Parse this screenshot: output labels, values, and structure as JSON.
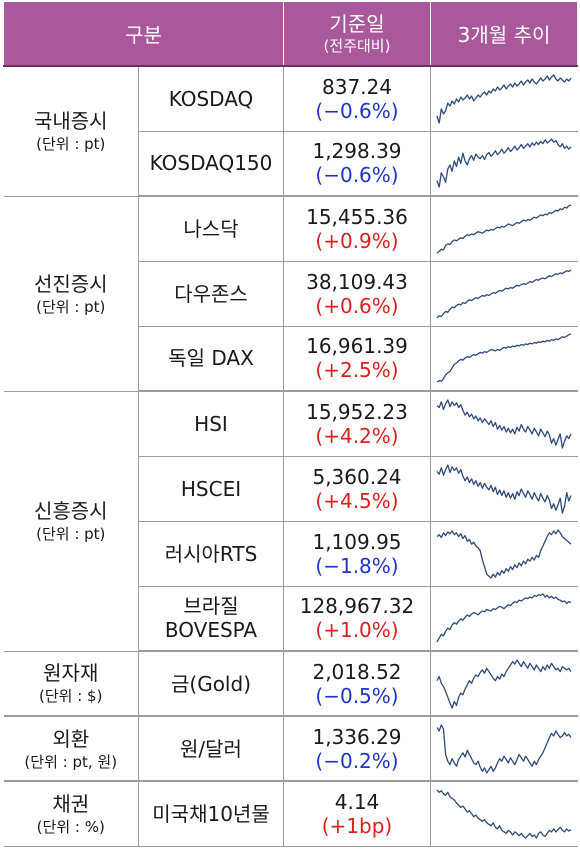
{
  "header": {
    "col_category": "구분",
    "col_value_line1": "기준일",
    "col_value_line2": "(전주대비)",
    "col_trend": "3개월 추이"
  },
  "groups": [
    {
      "name": "국내증시",
      "unit": "(단위 : pt)",
      "rows": [
        {
          "item": "KOSDAQ",
          "value": "837.24",
          "change": "(−0.6%)",
          "direction": "down",
          "trend": [
            45,
            38,
            52,
            47,
            50,
            58,
            55,
            60,
            57,
            62,
            59,
            64,
            61,
            63,
            66,
            62,
            65,
            60,
            63,
            66,
            64,
            67,
            69,
            66,
            70,
            68,
            72,
            70,
            74,
            71,
            73,
            76,
            72,
            75,
            77,
            74,
            78,
            75,
            77,
            80,
            76,
            79,
            81,
            78,
            82,
            79,
            77,
            80,
            83,
            80,
            82,
            85,
            81,
            84,
            86,
            82,
            80,
            83,
            81,
            79,
            82,
            80,
            83
          ]
        },
        {
          "item": "KOSDAQ150",
          "value": "1,298.39",
          "change": "(−0.6%)",
          "direction": "down",
          "trend": [
            30,
            22,
            40,
            35,
            28,
            45,
            50,
            42,
            55,
            48,
            60,
            52,
            65,
            55,
            50,
            58,
            62,
            56,
            64,
            60,
            58,
            62,
            57,
            63,
            66,
            61,
            64,
            68,
            63,
            66,
            70,
            65,
            68,
            72,
            67,
            70,
            74,
            69,
            72,
            76,
            71,
            74,
            77,
            73,
            78,
            75,
            79,
            76,
            80,
            77,
            82,
            78,
            80,
            83,
            79,
            81,
            76,
            73,
            77,
            71,
            74,
            70,
            73
          ]
        }
      ]
    },
    {
      "name": "선진증시",
      "unit": "(단위 : pt)",
      "rows": [
        {
          "item": "나스닥",
          "value": "15,455.36",
          "change": "(+0.9%)",
          "direction": "up",
          "trend": [
            30,
            32,
            35,
            34,
            40,
            42,
            41,
            45,
            47,
            46,
            48,
            50,
            49,
            52,
            54,
            53,
            55,
            54,
            56,
            58,
            57,
            56,
            58,
            60,
            59,
            61,
            60,
            62,
            64,
            63,
            65,
            64,
            66,
            68,
            67,
            66,
            68,
            70,
            69,
            71,
            73,
            72,
            74,
            73,
            75,
            77,
            76,
            78,
            80,
            79,
            81,
            80,
            83,
            82,
            84,
            86,
            85,
            88,
            87,
            90,
            89,
            92,
            93
          ]
        },
        {
          "item": "다우존스",
          "value": "38,109.43",
          "change": "(+0.6%)",
          "direction": "up",
          "trend": [
            25,
            28,
            27,
            31,
            34,
            33,
            37,
            40,
            39,
            42,
            44,
            43,
            46,
            45,
            48,
            50,
            49,
            51,
            53,
            52,
            54,
            56,
            55,
            57,
            56,
            58,
            60,
            59,
            61,
            63,
            62,
            64,
            66,
            65,
            67,
            66,
            68,
            70,
            69,
            71,
            72,
            71,
            73,
            75,
            74,
            76,
            78,
            77,
            79,
            80,
            79,
            81,
            83,
            82,
            84,
            86,
            85,
            87,
            86,
            88,
            90,
            89,
            91
          ]
        },
        {
          "item": "독일 DAX",
          "value": "16,961.39",
          "change": "(+2.5%)",
          "direction": "up",
          "trend": [
            20,
            22,
            21,
            25,
            30,
            33,
            35,
            40,
            45,
            47,
            50,
            52,
            51,
            54,
            56,
            55,
            57,
            59,
            58,
            60,
            62,
            61,
            63,
            62,
            64,
            66,
            65,
            64,
            66,
            65,
            67,
            69,
            68,
            70,
            69,
            71,
            70,
            72,
            71,
            73,
            72,
            74,
            73,
            75,
            74,
            76,
            75,
            77,
            76,
            78,
            77,
            79,
            78,
            80,
            79,
            81,
            80,
            82,
            84,
            83,
            85,
            87,
            88
          ]
        }
      ]
    },
    {
      "name": "신흥증시",
      "unit": "(단위 : pt)",
      "rows": [
        {
          "item": "HSI",
          "value": "15,952.23",
          "change": "(+4.2%)",
          "direction": "up",
          "trend": [
            80,
            78,
            84,
            76,
            82,
            86,
            79,
            84,
            80,
            83,
            78,
            81,
            75,
            70,
            73,
            68,
            71,
            66,
            69,
            64,
            67,
            62,
            66,
            63,
            60,
            64,
            58,
            62,
            55,
            59,
            54,
            58,
            52,
            56,
            51,
            55,
            50,
            57,
            53,
            60,
            55,
            52,
            58,
            54,
            50,
            56,
            52,
            48,
            55,
            51,
            47,
            53,
            49,
            40,
            45,
            38,
            44,
            50,
            35,
            42,
            48,
            45,
            50
          ]
        },
        {
          "item": "HSCEI",
          "value": "5,360.24",
          "change": "(+4.5%)",
          "direction": "up",
          "trend": [
            78,
            75,
            82,
            74,
            80,
            85,
            77,
            83,
            79,
            82,
            76,
            80,
            73,
            68,
            72,
            66,
            70,
            64,
            68,
            62,
            66,
            60,
            65,
            61,
            58,
            63,
            56,
            61,
            53,
            58,
            52,
            57,
            50,
            55,
            49,
            54,
            48,
            56,
            52,
            59,
            54,
            50,
            57,
            53,
            48,
            55,
            50,
            46,
            54,
            49,
            45,
            52,
            47,
            38,
            43,
            36,
            42,
            49,
            33,
            40,
            55,
            46,
            52
          ]
        },
        {
          "item": "러시아RTS",
          "value": "1,109.95",
          "change": "(−1.8%)",
          "direction": "down",
          "trend": [
            70,
            72,
            69,
            74,
            71,
            75,
            73,
            76,
            72,
            74,
            70,
            73,
            68,
            71,
            65,
            67,
            62,
            64,
            60,
            58,
            55,
            45,
            38,
            30,
            28,
            26,
            30,
            27,
            32,
            29,
            34,
            31,
            36,
            33,
            38,
            35,
            40,
            37,
            42,
            39,
            44,
            41,
            46,
            44,
            48,
            45,
            50,
            48,
            55,
            60,
            65,
            70,
            74,
            72,
            76,
            73,
            77,
            74,
            70,
            68,
            66,
            64,
            62
          ]
        },
        {
          "item": "브라질 BOVESPA",
          "item_line1": "브라질",
          "item_line2": "BOVESPA",
          "value": "128,967.32",
          "change": "(+1.0%)",
          "direction": "up",
          "trend": [
            20,
            25,
            30,
            28,
            34,
            38,
            36,
            42,
            45,
            43,
            47,
            50,
            48,
            52,
            55,
            53,
            56,
            58,
            57,
            55,
            58,
            60,
            59,
            62,
            61,
            60,
            63,
            62,
            64,
            66,
            65,
            63,
            66,
            68,
            67,
            70,
            72,
            71,
            74,
            73,
            75,
            77,
            76,
            78,
            77,
            80,
            79,
            81,
            80,
            82,
            78,
            80,
            77,
            79,
            76,
            78,
            75,
            74,
            72,
            73,
            70,
            72,
            71
          ]
        }
      ]
    },
    {
      "name": "원자재",
      "unit": "(단위 : $)",
      "rows": [
        {
          "item": "금(Gold)",
          "value": "2,018.52",
          "change": "(−0.5%)",
          "direction": "down",
          "trend": [
            55,
            60,
            52,
            48,
            42,
            35,
            28,
            22,
            30,
            25,
            35,
            40,
            38,
            45,
            50,
            55,
            52,
            58,
            62,
            60,
            65,
            68,
            64,
            70,
            66,
            62,
            58,
            55,
            60,
            57,
            63,
            60,
            66,
            70,
            74,
            78,
            75,
            80,
            76,
            72,
            78,
            74,
            70,
            76,
            72,
            68,
            74,
            70,
            66,
            72,
            68,
            74,
            70,
            76,
            72,
            68,
            70,
            66,
            72,
            70,
            68,
            70,
            66
          ]
        }
      ]
    },
    {
      "name": "외환",
      "unit": "(단위 : pt, 원)",
      "rows": [
        {
          "item": "원/달러",
          "value": "1,336.29",
          "change": "(−0.2%)",
          "direction": "down",
          "trend": [
            82,
            78,
            85,
            80,
            50,
            42,
            38,
            45,
            40,
            36,
            44,
            48,
            52,
            47,
            55,
            50,
            45,
            40,
            38,
            42,
            35,
            30,
            34,
            28,
            32,
            36,
            30,
            34,
            40,
            45,
            42,
            48,
            44,
            40,
            46,
            42,
            38,
            44,
            50,
            46,
            42,
            48,
            44,
            40,
            36,
            42,
            38,
            44,
            48,
            52,
            58,
            64,
            70,
            75,
            72,
            78,
            74,
            70,
            72,
            76,
            72,
            74,
            70
          ]
        }
      ]
    },
    {
      "name": "채권",
      "unit": "(단위 : %)",
      "rows": [
        {
          "item": "미국채10년물",
          "value": "4.14",
          "change": "(+1bp)",
          "direction": "up",
          "trend": [
            85,
            82,
            84,
            80,
            78,
            82,
            76,
            74,
            72,
            68,
            65,
            62,
            64,
            60,
            56,
            58,
            54,
            50,
            52,
            48,
            46,
            44,
            46,
            42,
            40,
            38,
            42,
            36,
            34,
            38,
            32,
            30,
            28,
            32,
            30,
            26,
            30,
            28,
            25,
            28,
            24,
            22,
            25,
            28,
            24,
            26,
            22,
            28,
            30,
            26,
            24,
            28,
            32,
            30,
            34,
            30,
            33,
            36,
            32,
            30,
            34,
            31,
            33
          ]
        }
      ]
    }
  ],
  "colors": {
    "header_bg": "#a9589b",
    "header_text": "#ffffff",
    "negative": "#1f35c8",
    "positive": "#d92020",
    "sparkline": "#2e4a7a"
  }
}
